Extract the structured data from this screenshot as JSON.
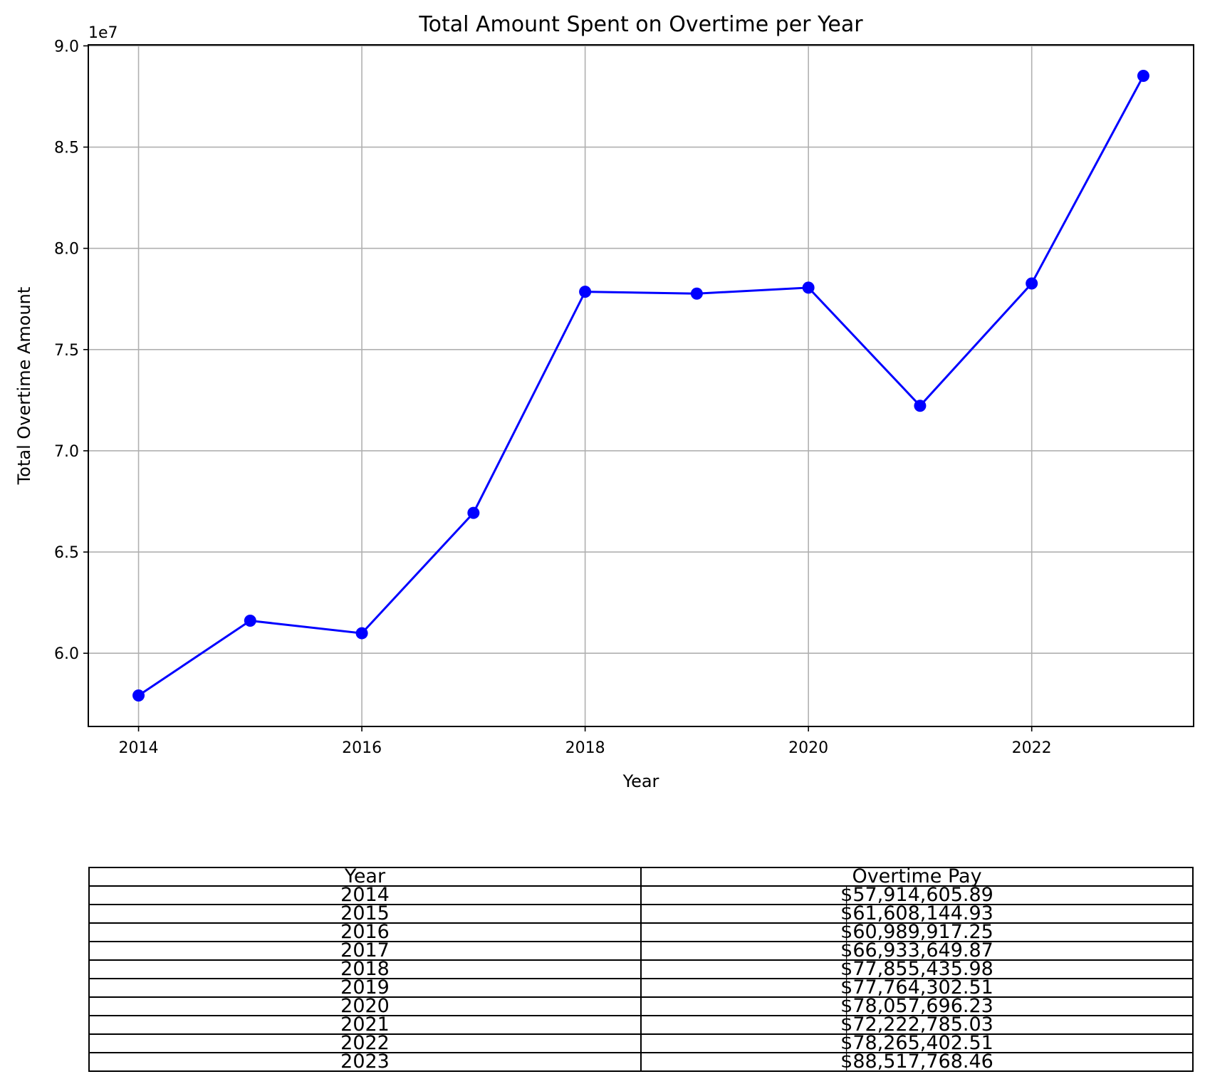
{
  "chart_data": {
    "type": "line",
    "title": "Total Amount Spent on Overtime per Year",
    "xlabel": "Year",
    "ylabel": "Total Overtime Amount",
    "y_offset_text": "1e7",
    "x": [
      2014,
      2015,
      2016,
      2017,
      2018,
      2019,
      2020,
      2021,
      2022,
      2023
    ],
    "series": [
      {
        "values": [
          57914605.89,
          61608144.93,
          60989917.25,
          66933649.87,
          77855435.98,
          77764302.51,
          78057696.23,
          72222785.03,
          78265402.51,
          88517768.46
        ],
        "color": "#0000ff",
        "marker": "circle"
      }
    ],
    "xlim": [
      2013.55,
      2023.45
    ],
    "ylim": [
      56384447.7,
      90048926.6
    ],
    "x_ticks": [
      2014,
      2016,
      2018,
      2020,
      2022
    ],
    "x_tick_labels": [
      "2014",
      "2016",
      "2018",
      "2020",
      "2022"
    ],
    "y_ticks": [
      60000000,
      65000000,
      70000000,
      75000000,
      80000000,
      85000000,
      90000000
    ],
    "y_tick_labels": [
      "6.0",
      "6.5",
      "7.0",
      "7.5",
      "8.0",
      "8.5",
      "9.0"
    ],
    "grid": true
  },
  "table": {
    "headers": [
      "Year",
      "Overtime Pay"
    ],
    "rows": [
      [
        "2014",
        "$57,914,605.89"
      ],
      [
        "2015",
        "$61,608,144.93"
      ],
      [
        "2016",
        "$60,989,917.25"
      ],
      [
        "2017",
        "$66,933,649.87"
      ],
      [
        "2018",
        "$77,855,435.98"
      ],
      [
        "2019",
        "$77,764,302.51"
      ],
      [
        "2020",
        "$78,057,696.23"
      ],
      [
        "2021",
        "$72,222,785.03"
      ],
      [
        "2022",
        "$78,265,402.51"
      ],
      [
        "2023",
        "$88,517,768.46"
      ]
    ]
  }
}
